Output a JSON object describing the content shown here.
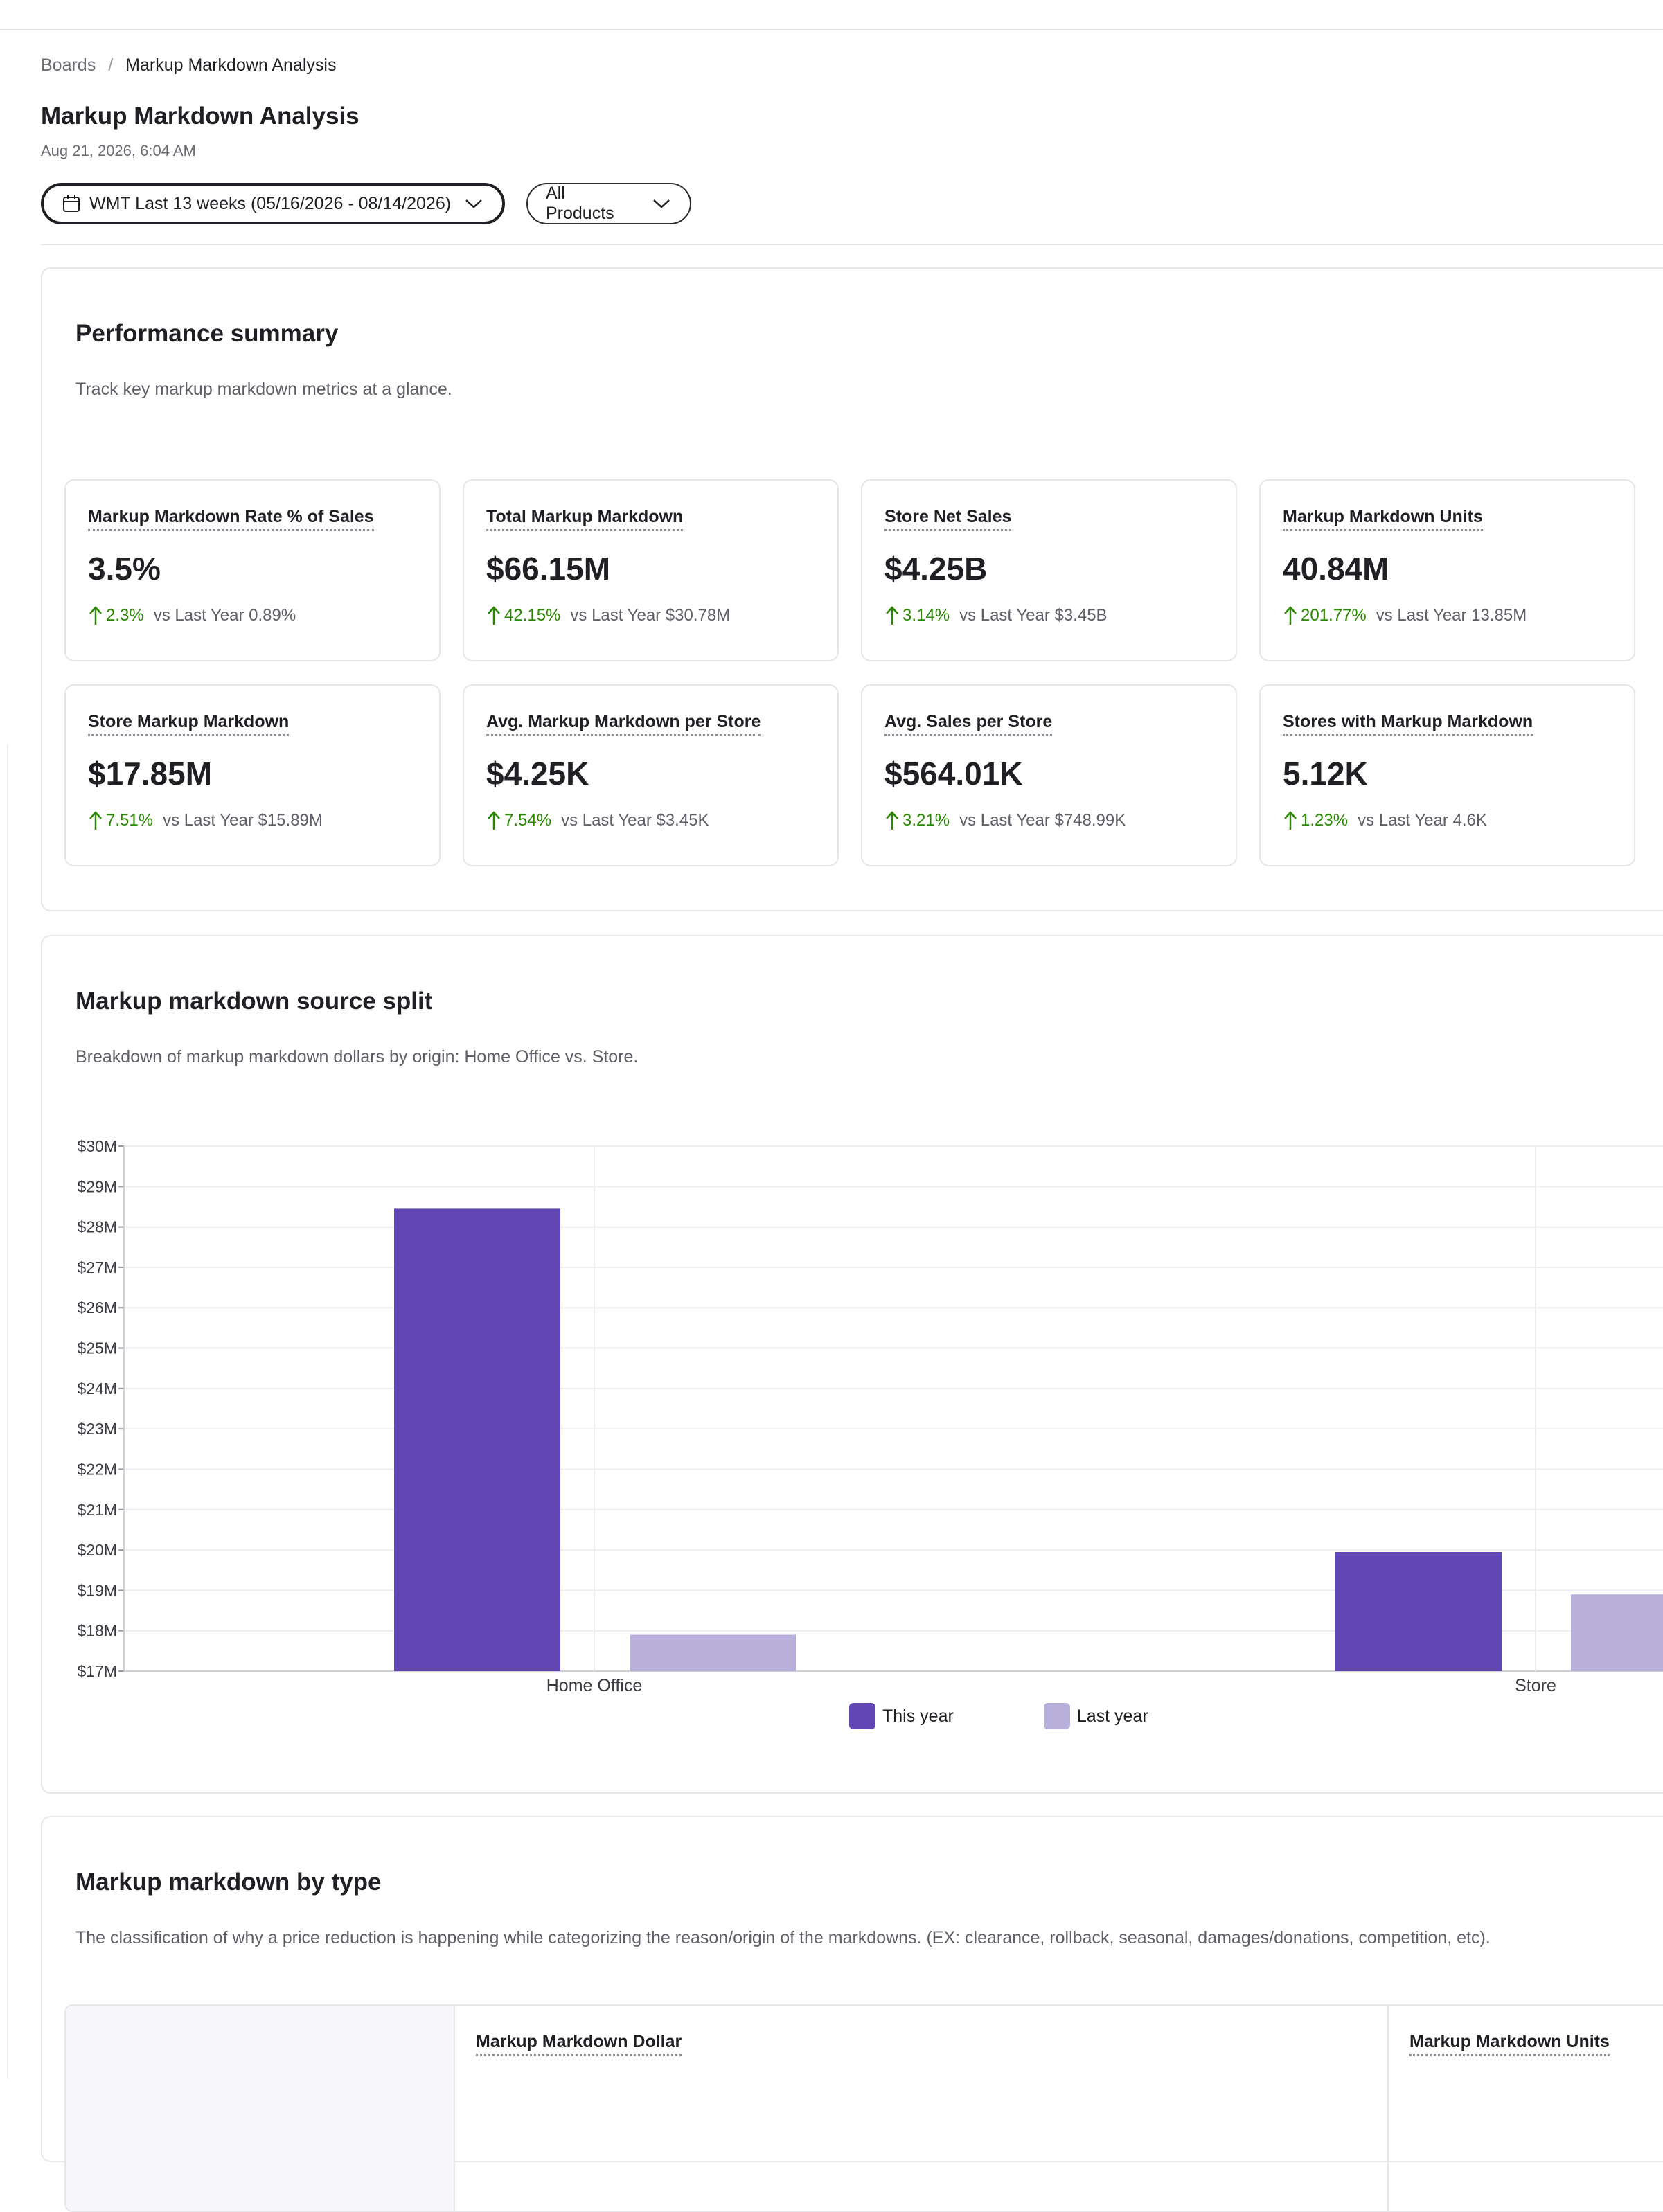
{
  "breadcrumb": {
    "root": "Boards",
    "current": "Markup Markdown Analysis"
  },
  "page": {
    "title": "Markup Markdown Analysis",
    "date": "Aug 21, 2026, 6:04 AM"
  },
  "filters": {
    "date_range": "WMT Last 13 weeks (05/16/2026 - 08/14/2026)",
    "products": "All Products"
  },
  "performance": {
    "title": "Performance summary",
    "subtitle": "Track key markup markdown metrics at a glance.",
    "cards": [
      {
        "label": "Markup Markdown Rate % of Sales",
        "value": "3.5%",
        "delta": "2.3%",
        "comparison": "vs Last Year 0.89%"
      },
      {
        "label": "Total Markup Markdown",
        "value": "$66.15M",
        "delta": "42.15%",
        "comparison": "vs Last Year $30.78M"
      },
      {
        "label": "Store Net Sales",
        "value": "$4.25B",
        "delta": "3.14%",
        "comparison": "vs Last Year $3.45B"
      },
      {
        "label": "Markup Markdown Units",
        "value": "40.84M",
        "delta": "201.77%",
        "comparison": "vs Last Year 13.85M"
      },
      {
        "label": "Store Markup Markdown",
        "value": "$17.85M",
        "delta": "7.51%",
        "comparison": "vs Last Year $15.89M"
      },
      {
        "label": "Avg. Markup Markdown per Store",
        "value": "$4.25K",
        "delta": "7.54%",
        "comparison": "vs Last Year $3.45K"
      },
      {
        "label": "Avg. Sales per Store",
        "value": "$564.01K",
        "delta": "3.21%",
        "comparison": "vs Last Year $748.99K"
      },
      {
        "label": "Stores with Markup Markdown",
        "value": "5.12K",
        "delta": "1.23%",
        "comparison": "vs Last Year 4.6K"
      }
    ],
    "delta_color": "#2a8703"
  },
  "split": {
    "title": "Markup markdown source split",
    "subtitle": "Breakdown of markup markdown dollars by origin: Home Office vs. Store."
  },
  "chart_data": {
    "type": "bar",
    "title": "",
    "xlabel": "",
    "ylabel": "",
    "categories": [
      "Home Office",
      "Store"
    ],
    "series": [
      {
        "name": "This year",
        "values": [
          28.45,
          19.95
        ],
        "color": "#6246b6"
      },
      {
        "name": "Last year",
        "values": [
          17.9,
          18.9
        ],
        "color": "#b8b0da"
      }
    ],
    "ylim": [
      17,
      30
    ],
    "yticks": [
      "$17M",
      "$18M",
      "$19M",
      "$20M",
      "$21M",
      "$22M",
      "$23M",
      "$24M",
      "$25M",
      "$26M",
      "$27M",
      "$28M",
      "$29M",
      "$30M"
    ],
    "grid": true,
    "legend": "bottom-center"
  },
  "by_type": {
    "title": "Markup markdown by type",
    "subtitle": "The classification of why a price reduction is happening while categorizing the reason/origin of the markdowns. (EX: clearance, rollback, seasonal, damages/donations, competition, etc).",
    "columns": [
      "Markup Markdown Dollar",
      "Markup Markdown Units"
    ]
  }
}
